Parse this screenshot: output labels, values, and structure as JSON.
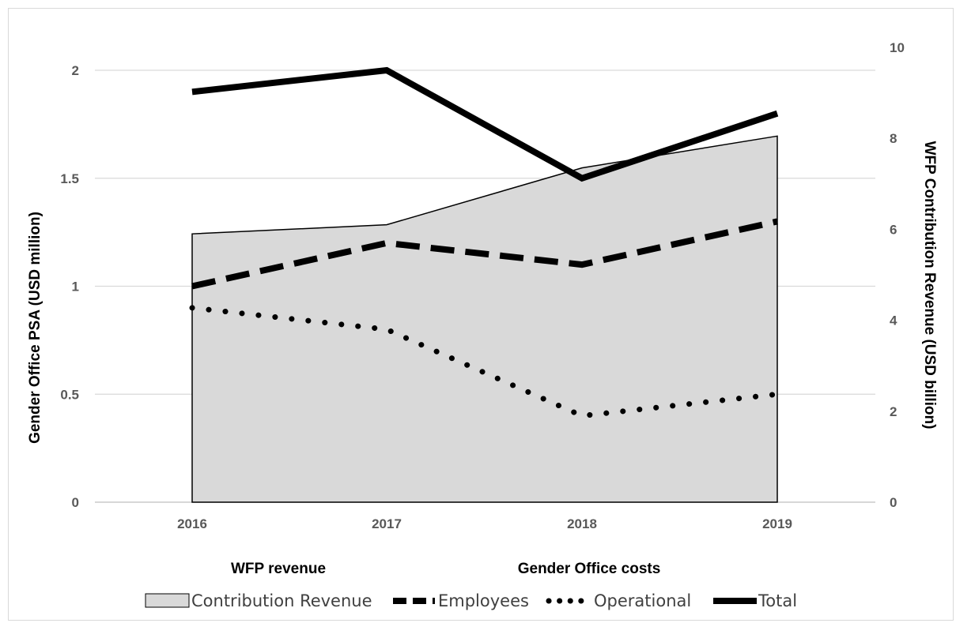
{
  "chart_data": {
    "type": "line",
    "categories": [
      "2016",
      "2017",
      "2018",
      "2019"
    ],
    "y_left": {
      "label": "Gender Office PSA (USD million)",
      "range": [
        0,
        2
      ],
      "ticks": [
        "0",
        "0.5",
        "1",
        "1.5",
        "2"
      ],
      "tick_values": [
        0,
        0.5,
        1,
        1.5,
        2
      ]
    },
    "y_right": {
      "label": "WFP Contribution Revenue (USD billion)",
      "range": [
        0,
        10
      ],
      "ticks": [
        "0",
        "2",
        "4",
        "6",
        "8",
        "10"
      ],
      "tick_values": [
        0,
        2,
        4,
        6,
        8,
        10
      ]
    },
    "group_labels": [
      "WFP revenue",
      "Gender Office costs"
    ],
    "grid": true,
    "legend_position": "bottom",
    "series": [
      {
        "name": "Contribution Revenue",
        "type": "area",
        "axis": "right",
        "values": [
          5.9,
          6.1,
          7.35,
          8.05
        ],
        "color": "#d9d9d9"
      },
      {
        "name": "Employees",
        "type": "line",
        "style": "dashed",
        "axis": "left",
        "values": [
          1.0,
          1.2,
          1.1,
          1.3
        ],
        "color": "#000000"
      },
      {
        "name": "Operational",
        "type": "line",
        "style": "dotted",
        "axis": "left",
        "values": [
          0.9,
          0.8,
          0.4,
          0.5
        ],
        "color": "#000000"
      },
      {
        "name": "Total",
        "type": "line",
        "style": "solid",
        "axis": "left",
        "values": [
          1.9,
          2.0,
          1.5,
          1.8
        ],
        "color": "#000000"
      }
    ]
  }
}
